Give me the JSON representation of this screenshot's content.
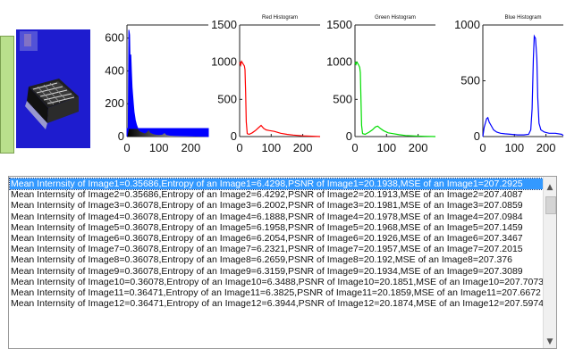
{
  "colors": {
    "gray": "#0000ff",
    "red": "#ff0000",
    "green": "#00dd00",
    "blue": "#0000ff",
    "preview_bg": "#1e1ccf",
    "selection": "#3399ff"
  },
  "plots": [
    {
      "id": "gray",
      "title": "",
      "yticks": [
        "0",
        "200",
        "400",
        "600"
      ],
      "xticks": [
        "0",
        "100",
        "200"
      ],
      "ylim": [
        0,
        680
      ],
      "xlim": [
        0,
        255
      ],
      "series": [
        [
          0,
          0
        ],
        [
          4,
          40
        ],
        [
          6,
          650
        ],
        [
          8,
          620
        ],
        [
          10,
          420
        ],
        [
          12,
          500
        ],
        [
          14,
          390
        ],
        [
          16,
          300
        ],
        [
          18,
          250
        ],
        [
          20,
          200
        ],
        [
          22,
          150
        ],
        [
          26,
          100
        ],
        [
          30,
          70
        ],
        [
          34,
          50
        ],
        [
          40,
          35
        ],
        [
          48,
          28
        ],
        [
          56,
          22
        ],
        [
          62,
          30
        ],
        [
          68,
          45
        ],
        [
          74,
          25
        ],
        [
          82,
          18
        ],
        [
          90,
          14
        ],
        [
          100,
          12
        ],
        [
          110,
          14
        ],
        [
          118,
          25
        ],
        [
          124,
          12
        ],
        [
          135,
          8
        ],
        [
          150,
          6
        ],
        [
          170,
          5
        ],
        [
          200,
          3
        ],
        [
          230,
          2
        ],
        [
          255,
          0
        ]
      ]
    },
    {
      "id": "red",
      "title": "Red Histogram",
      "yticks": [
        "0",
        "500",
        "1000",
        "1500"
      ],
      "xticks": [
        "0",
        "100",
        "200"
      ],
      "ylim": [
        0,
        1500
      ],
      "xlim": [
        0,
        255
      ],
      "series": [
        [
          0,
          1000
        ],
        [
          3,
          960
        ],
        [
          6,
          1010
        ],
        [
          9,
          990
        ],
        [
          12,
          970
        ],
        [
          15,
          950
        ],
        [
          17,
          900
        ],
        [
          19,
          600
        ],
        [
          21,
          200
        ],
        [
          24,
          40
        ],
        [
          30,
          30
        ],
        [
          40,
          50
        ],
        [
          50,
          80
        ],
        [
          60,
          120
        ],
        [
          68,
          150
        ],
        [
          76,
          110
        ],
        [
          84,
          90
        ],
        [
          95,
          80
        ],
        [
          110,
          70
        ],
        [
          130,
          45
        ],
        [
          150,
          30
        ],
        [
          170,
          20
        ],
        [
          200,
          10
        ],
        [
          230,
          5
        ],
        [
          255,
          0
        ]
      ]
    },
    {
      "id": "green",
      "title": "Green Histogram",
      "yticks": [
        "0",
        "500",
        "1000",
        "1500"
      ],
      "xticks": [
        "0",
        "100",
        "200"
      ],
      "ylim": [
        0,
        1500
      ],
      "xlim": [
        0,
        255
      ],
      "series": [
        [
          0,
          1000
        ],
        [
          3,
          970
        ],
        [
          6,
          1000
        ],
        [
          9,
          980
        ],
        [
          12,
          960
        ],
        [
          15,
          930
        ],
        [
          17,
          860
        ],
        [
          19,
          500
        ],
        [
          21,
          150
        ],
        [
          24,
          40
        ],
        [
          32,
          30
        ],
        [
          45,
          60
        ],
        [
          55,
          90
        ],
        [
          65,
          130
        ],
        [
          72,
          140
        ],
        [
          80,
          110
        ],
        [
          90,
          80
        ],
        [
          105,
          50
        ],
        [
          120,
          40
        ],
        [
          140,
          25
        ],
        [
          160,
          15
        ],
        [
          190,
          8
        ],
        [
          220,
          4
        ],
        [
          255,
          0
        ]
      ]
    },
    {
      "id": "blue",
      "title": "Blue Histogram",
      "yticks": [
        "0",
        "500",
        "1000"
      ],
      "xticks": [
        "0",
        "100",
        "200"
      ],
      "ylim": [
        0,
        1000
      ],
      "xlim": [
        0,
        255
      ],
      "series": [
        [
          0,
          0
        ],
        [
          4,
          80
        ],
        [
          8,
          120
        ],
        [
          12,
          160
        ],
        [
          16,
          170
        ],
        [
          20,
          130
        ],
        [
          26,
          100
        ],
        [
          34,
          60
        ],
        [
          44,
          40
        ],
        [
          56,
          30
        ],
        [
          70,
          25
        ],
        [
          90,
          20
        ],
        [
          110,
          15
        ],
        [
          130,
          15
        ],
        [
          145,
          20
        ],
        [
          152,
          60
        ],
        [
          156,
          250
        ],
        [
          160,
          700
        ],
        [
          163,
          900
        ],
        [
          167,
          880
        ],
        [
          171,
          700
        ],
        [
          174,
          350
        ],
        [
          178,
          120
        ],
        [
          184,
          60
        ],
        [
          195,
          40
        ],
        [
          210,
          30
        ],
        [
          230,
          30
        ],
        [
          250,
          20
        ],
        [
          255,
          10
        ]
      ]
    }
  ],
  "list": {
    "selected_index": 0,
    "items": [
      "Mean Internsity of Image1=0.35686,Entropy of an Image1=6.4298,PSNR of Image1=20.1938,MSE of an Image1=207.2925",
      "Mean Internsity of Image2=0.35686,Entropy of an Image2=6.4292,PSNR of Image2=20.1913,MSE of an Image2=207.4087",
      "Mean Internsity of Image3=0.36078,Entropy of an Image3=6.2002,PSNR of Image3=20.1981,MSE of an Image3=207.0859",
      "Mean Internsity of Image4=0.36078,Entropy of an Image4=6.1888,PSNR of Image4=20.1978,MSE of an Image4=207.0984",
      "Mean Internsity of Image5=0.36078,Entropy of an Image5=6.1958,PSNR of Image5=20.1968,MSE of an Image5=207.1459",
      "Mean Internsity of Image6=0.36078,Entropy of an Image6=6.2054,PSNR of Image6=20.1926,MSE of an Image6=207.3467",
      "Mean Internsity of Image7=0.36078,Entropy of an Image7=6.2321,PSNR of Image7=20.1957,MSE of an Image7=207.2015",
      "Mean Internsity of Image8=0.36078,Entropy of an Image8=6.2659,PSNR of Image8=20.192,MSE of an Image8=207.376",
      "Mean Internsity of Image9=0.36078,Entropy of an Image9=6.3159,PSNR of Image9=20.1934,MSE of an Image9=207.3089",
      "Mean Internsity of Image10=0.36078,Entropy of an Image10=6.3488,PSNR of Image10=20.1851,MSE of an Image10=207.7073",
      "Mean Internsity of Image11=0.36471,Entropy of an Image11=6.3825,PSNR of Image11=20.1859,MSE of an Image11=207.6672",
      "Mean Internsity of Image12=0.36471,Entropy of an Image12=6.3944,PSNR of Image12=20.1874,MSE of an Image12=207.5974"
    ]
  },
  "scrollbar": {
    "up_icon": "chevron-up-icon",
    "down_icon": "chevron-down-icon"
  }
}
